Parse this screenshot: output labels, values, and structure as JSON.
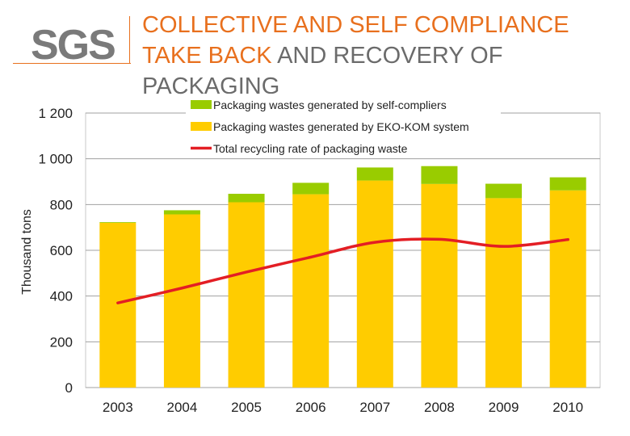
{
  "logo": {
    "text": "SGS",
    "accent_color": "#e8701e"
  },
  "title": {
    "line1": "COLLECTIVE AND SELF COMPLIANCE",
    "line2_highlight": "TAKE BACK",
    "line2_rest": " AND RECOVERY OF",
    "line3": "PACKAGING"
  },
  "chart_data": {
    "type": "bar",
    "stacked": true,
    "categories": [
      "2003",
      "2004",
      "2005",
      "2006",
      "2007",
      "2008",
      "2009",
      "2010"
    ],
    "series": [
      {
        "name": "Packaging wastes generated by EKO-KOM system",
        "kind": "bar",
        "color": "#ffcc00",
        "values": [
          720,
          757,
          810,
          845,
          905,
          890,
          828,
          862
        ]
      },
      {
        "name": "Packaging wastes generated by self-compliers",
        "kind": "bar",
        "color": "#99cc00",
        "values": [
          3,
          18,
          37,
          50,
          57,
          78,
          63,
          57
        ]
      },
      {
        "name": "Total recycling rate of packaging waste",
        "kind": "line",
        "color": "#e31e24",
        "values": [
          370,
          435,
          505,
          570,
          635,
          648,
          617,
          647
        ]
      }
    ],
    "ylabel": "Thousand tons",
    "yticks": [
      "0",
      "200",
      "400",
      "600",
      "800",
      "1 000",
      "1 200"
    ],
    "ytick_values": [
      0,
      200,
      400,
      600,
      800,
      1000,
      1200
    ],
    "ylim": [
      0,
      1200
    ],
    "grid": true,
    "legend_position": "top"
  }
}
